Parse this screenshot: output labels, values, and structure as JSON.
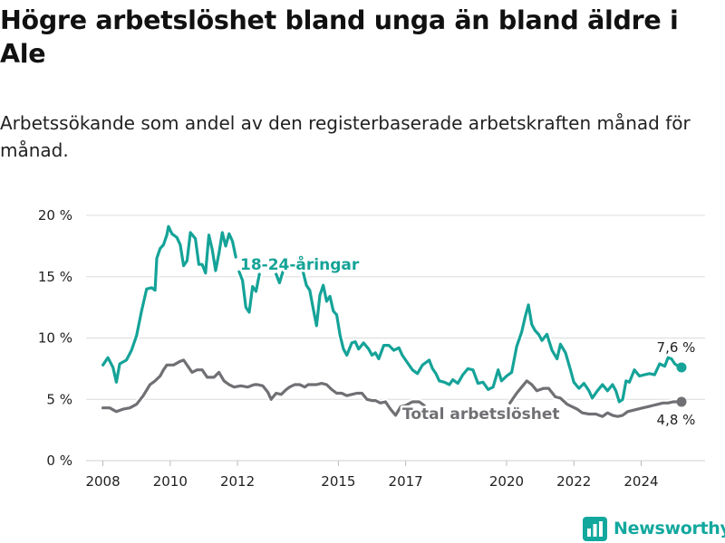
{
  "title": "Högre arbetslöshet bland unga än bland äldre i Ale",
  "subtitle": "Arbetssökande som andel av den registerbaserade arbetskraften månad för månad.",
  "brand": {
    "name": "Newsworthy",
    "icon": "bar-chart-logo-icon",
    "color": "#13a89e"
  },
  "chart_data": {
    "type": "line",
    "title": "Högre arbetslöshet bland unga än bland äldre i Ale",
    "subtitle": "Arbetssökande som andel av den registerbaserade arbetskraften månad för månad.",
    "xlabel": "",
    "ylabel": "",
    "x_range": [
      2007.5,
      2025.9
    ],
    "ylim": [
      0,
      20
    ],
    "x_ticks": [
      2008,
      2010,
      2012,
      2015,
      2017,
      2020,
      2022,
      2024
    ],
    "y_ticks": [
      0,
      5,
      10,
      15,
      20
    ],
    "y_tick_labels": [
      "0 %",
      "5 %",
      "10 %",
      "15 %",
      "20 %"
    ],
    "grid": "horizontal",
    "legend": "inline labels",
    "series": [
      {
        "name": "18-24-åringar",
        "color": "#15a398",
        "label_x": 2011.8,
        "end_label": "7,6 %",
        "points": [
          [
            2008.0,
            7.8
          ],
          [
            2008.15,
            8.4
          ],
          [
            2008.3,
            7.6
          ],
          [
            2008.4,
            6.4
          ],
          [
            2008.5,
            7.9
          ],
          [
            2008.7,
            8.2
          ],
          [
            2008.85,
            9.0
          ],
          [
            2009.0,
            10.2
          ],
          [
            2009.15,
            12.2
          ],
          [
            2009.3,
            14.0
          ],
          [
            2009.45,
            14.1
          ],
          [
            2009.55,
            13.9
          ],
          [
            2009.6,
            16.5
          ],
          [
            2009.7,
            17.3
          ],
          [
            2009.8,
            17.6
          ],
          [
            2009.9,
            18.4
          ],
          [
            2009.95,
            19.1
          ],
          [
            2010.05,
            18.5
          ],
          [
            2010.2,
            18.2
          ],
          [
            2010.3,
            17.6
          ],
          [
            2010.4,
            15.9
          ],
          [
            2010.5,
            16.3
          ],
          [
            2010.6,
            18.6
          ],
          [
            2010.75,
            18.1
          ],
          [
            2010.85,
            16.0
          ],
          [
            2010.95,
            16.0
          ],
          [
            2011.05,
            15.3
          ],
          [
            2011.15,
            18.4
          ],
          [
            2011.25,
            17.2
          ],
          [
            2011.35,
            15.5
          ],
          [
            2011.45,
            16.9
          ],
          [
            2011.55,
            18.6
          ],
          [
            2011.65,
            17.5
          ],
          [
            2011.75,
            18.5
          ],
          [
            2011.85,
            17.9
          ],
          [
            2011.95,
            16.6
          ]
        ],
        "points_b": [
          [
            2012.05,
            15.4
          ],
          [
            2012.15,
            14.7
          ],
          [
            2012.25,
            12.5
          ],
          [
            2012.35,
            12.1
          ],
          [
            2012.45,
            14.2
          ],
          [
            2012.55,
            13.8
          ],
          [
            2012.65,
            15.2
          ]
        ],
        "points_c": [
          [
            2013.15,
            15.2
          ],
          [
            2013.25,
            14.5
          ],
          [
            2013.35,
            15.4
          ]
        ],
        "points_d": [
          [
            2013.95,
            15.4
          ],
          [
            2014.05,
            14.3
          ],
          [
            2014.15,
            13.9
          ],
          [
            2014.25,
            12.4
          ],
          [
            2014.35,
            11.0
          ],
          [
            2014.45,
            13.5
          ],
          [
            2014.55,
            14.3
          ],
          [
            2014.65,
            13.0
          ],
          [
            2014.75,
            13.4
          ],
          [
            2014.85,
            12.2
          ],
          [
            2014.95,
            11.9
          ],
          [
            2015.05,
            10.2
          ],
          [
            2015.15,
            9.1
          ],
          [
            2015.25,
            8.6
          ],
          [
            2015.4,
            9.6
          ],
          [
            2015.5,
            9.7
          ],
          [
            2015.6,
            9.1
          ],
          [
            2015.75,
            9.6
          ],
          [
            2015.9,
            9.1
          ],
          [
            2016.0,
            8.6
          ],
          [
            2016.1,
            8.8
          ],
          [
            2016.2,
            8.3
          ],
          [
            2016.35,
            9.4
          ],
          [
            2016.5,
            9.4
          ],
          [
            2016.65,
            9.0
          ],
          [
            2016.8,
            9.2
          ],
          [
            2016.9,
            8.6
          ],
          [
            2017.05,
            8.0
          ],
          [
            2017.2,
            7.4
          ],
          [
            2017.35,
            7.1
          ],
          [
            2017.5,
            7.8
          ],
          [
            2017.7,
            8.2
          ],
          [
            2017.8,
            7.5
          ],
          [
            2017.9,
            7.1
          ],
          [
            2018.0,
            6.5
          ],
          [
            2018.15,
            6.4
          ],
          [
            2018.3,
            6.2
          ],
          [
            2018.4,
            6.6
          ],
          [
            2018.55,
            6.3
          ],
          [
            2018.7,
            7.0
          ],
          [
            2018.85,
            7.5
          ],
          [
            2019.0,
            7.4
          ],
          [
            2019.15,
            6.3
          ],
          [
            2019.3,
            6.4
          ],
          [
            2019.45,
            5.8
          ],
          [
            2019.6,
            6.0
          ],
          [
            2019.75,
            7.4
          ],
          [
            2019.85,
            6.5
          ],
          [
            2020.0,
            6.9
          ],
          [
            2020.15,
            7.2
          ],
          [
            2020.3,
            9.3
          ],
          [
            2020.45,
            10.5
          ],
          [
            2020.55,
            11.7
          ],
          [
            2020.65,
            12.7
          ],
          [
            2020.75,
            11.1
          ],
          [
            2020.85,
            10.6
          ],
          [
            2020.95,
            10.3
          ],
          [
            2021.05,
            9.8
          ],
          [
            2021.2,
            10.3
          ],
          [
            2021.35,
            9.0
          ],
          [
            2021.5,
            8.3
          ],
          [
            2021.6,
            9.5
          ],
          [
            2021.75,
            8.8
          ],
          [
            2021.9,
            7.4
          ],
          [
            2022.0,
            6.4
          ],
          [
            2022.15,
            5.9
          ],
          [
            2022.3,
            6.3
          ],
          [
            2022.45,
            5.7
          ],
          [
            2022.55,
            5.1
          ],
          [
            2022.7,
            5.7
          ],
          [
            2022.85,
            6.2
          ],
          [
            2023.0,
            5.7
          ],
          [
            2023.15,
            6.2
          ],
          [
            2023.25,
            5.7
          ],
          [
            2023.35,
            4.8
          ],
          [
            2023.45,
            5.0
          ],
          [
            2023.55,
            6.5
          ],
          [
            2023.65,
            6.4
          ],
          [
            2023.8,
            7.4
          ],
          [
            2023.95,
            6.9
          ],
          [
            2024.1,
            7.0
          ],
          [
            2024.25,
            7.1
          ],
          [
            2024.4,
            7.0
          ],
          [
            2024.55,
            7.9
          ],
          [
            2024.7,
            7.7
          ],
          [
            2024.8,
            8.4
          ],
          [
            2024.9,
            8.3
          ],
          [
            2025.0,
            7.9
          ],
          [
            2025.1,
            7.7
          ],
          [
            2025.2,
            7.6
          ]
        ]
      },
      {
        "name": "Total arbetslöshet",
        "color": "#707074",
        "label_x": 2019.1,
        "end_label": "4,8 %",
        "points": [
          [
            2008.0,
            4.3
          ],
          [
            2008.2,
            4.3
          ],
          [
            2008.4,
            4.0
          ],
          [
            2008.6,
            4.2
          ],
          [
            2008.8,
            4.3
          ],
          [
            2009.0,
            4.6
          ],
          [
            2009.2,
            5.3
          ],
          [
            2009.4,
            6.2
          ],
          [
            2009.55,
            6.5
          ],
          [
            2009.7,
            6.9
          ],
          [
            2009.8,
            7.4
          ],
          [
            2009.9,
            7.8
          ],
          [
            2010.1,
            7.8
          ],
          [
            2010.3,
            8.1
          ],
          [
            2010.4,
            8.2
          ],
          [
            2010.55,
            7.6
          ],
          [
            2010.65,
            7.2
          ],
          [
            2010.8,
            7.4
          ],
          [
            2010.95,
            7.4
          ],
          [
            2011.1,
            6.8
          ],
          [
            2011.3,
            6.8
          ],
          [
            2011.45,
            7.2
          ],
          [
            2011.6,
            6.5
          ],
          [
            2011.75,
            6.2
          ],
          [
            2011.9,
            6.0
          ],
          [
            2012.1,
            6.1
          ],
          [
            2012.3,
            6.0
          ],
          [
            2012.5,
            6.2
          ],
          [
            2012.6,
            6.2
          ],
          [
            2012.75,
            6.1
          ],
          [
            2012.9,
            5.6
          ],
          [
            2013.0,
            5.0
          ],
          [
            2013.15,
            5.5
          ],
          [
            2013.3,
            5.4
          ],
          [
            2013.45,
            5.8
          ],
          [
            2013.55,
            6.0
          ],
          [
            2013.7,
            6.2
          ],
          [
            2013.85,
            6.2
          ],
          [
            2014.0,
            6.0
          ],
          [
            2014.1,
            6.2
          ],
          [
            2014.2,
            6.2
          ],
          [
            2014.35,
            6.2
          ],
          [
            2014.5,
            6.3
          ],
          [
            2014.65,
            6.2
          ],
          [
            2014.8,
            5.8
          ],
          [
            2014.95,
            5.5
          ],
          [
            2015.1,
            5.5
          ],
          [
            2015.25,
            5.3
          ],
          [
            2015.4,
            5.4
          ],
          [
            2015.55,
            5.5
          ],
          [
            2015.7,
            5.5
          ],
          [
            2015.85,
            5.0
          ],
          [
            2016.0,
            4.9
          ],
          [
            2016.1,
            4.9
          ],
          [
            2016.25,
            4.7
          ],
          [
            2016.4,
            4.8
          ],
          [
            2016.55,
            4.2
          ],
          [
            2016.7,
            3.7
          ],
          [
            2016.85,
            4.4
          ],
          [
            2017.0,
            4.5
          ],
          [
            2017.2,
            4.8
          ],
          [
            2017.4,
            4.8
          ],
          [
            2017.55,
            4.5
          ]
        ],
        "points_b": [
          [
            2020.1,
            4.7
          ],
          [
            2020.3,
            5.5
          ],
          [
            2020.45,
            6.0
          ],
          [
            2020.6,
            6.5
          ],
          [
            2020.75,
            6.2
          ],
          [
            2020.9,
            5.7
          ],
          [
            2021.1,
            5.9
          ],
          [
            2021.25,
            5.9
          ],
          [
            2021.45,
            5.2
          ],
          [
            2021.6,
            5.1
          ],
          [
            2021.8,
            4.6
          ],
          [
            2021.95,
            4.4
          ],
          [
            2022.1,
            4.2
          ],
          [
            2022.25,
            3.9
          ],
          [
            2022.45,
            3.8
          ],
          [
            2022.65,
            3.8
          ],
          [
            2022.85,
            3.6
          ],
          [
            2023.0,
            3.9
          ],
          [
            2023.15,
            3.7
          ],
          [
            2023.3,
            3.6
          ],
          [
            2023.45,
            3.7
          ],
          [
            2023.6,
            4.0
          ],
          [
            2023.75,
            4.1
          ],
          [
            2023.9,
            4.2
          ],
          [
            2024.05,
            4.3
          ],
          [
            2024.2,
            4.4
          ],
          [
            2024.35,
            4.5
          ],
          [
            2024.5,
            4.6
          ],
          [
            2024.65,
            4.7
          ],
          [
            2024.8,
            4.7
          ],
          [
            2024.95,
            4.8
          ],
          [
            2025.1,
            4.8
          ],
          [
            2025.2,
            4.8
          ]
        ]
      }
    ]
  }
}
